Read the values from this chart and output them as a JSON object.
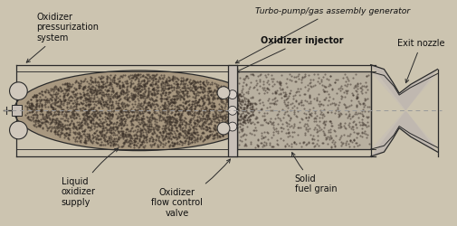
{
  "bg_color": "#ccc4b0",
  "line_color": "#2a2a2a",
  "tank_fill": "#a89880",
  "grain_fill": "#b8b0a0",
  "chamber_fill": "#d0c8bc",
  "nozzle_fill": "#c8c0b4",
  "font_size": 7.0,
  "labels": {
    "turbo_pump": "Turbo-pump/gas assembly generator",
    "oxidizer_injector": "Oxidizer injector",
    "exit_nozzle": "Exit nozzle",
    "oxidizer_press": "Oxidizer\npressurization\nsystem",
    "liquid_oxidizer": "Liquid\noxidizer\nsupply",
    "flow_control": "Oxidizer\nflow control\nvalve",
    "solid_fuel": "Solid\nfuel grain"
  }
}
